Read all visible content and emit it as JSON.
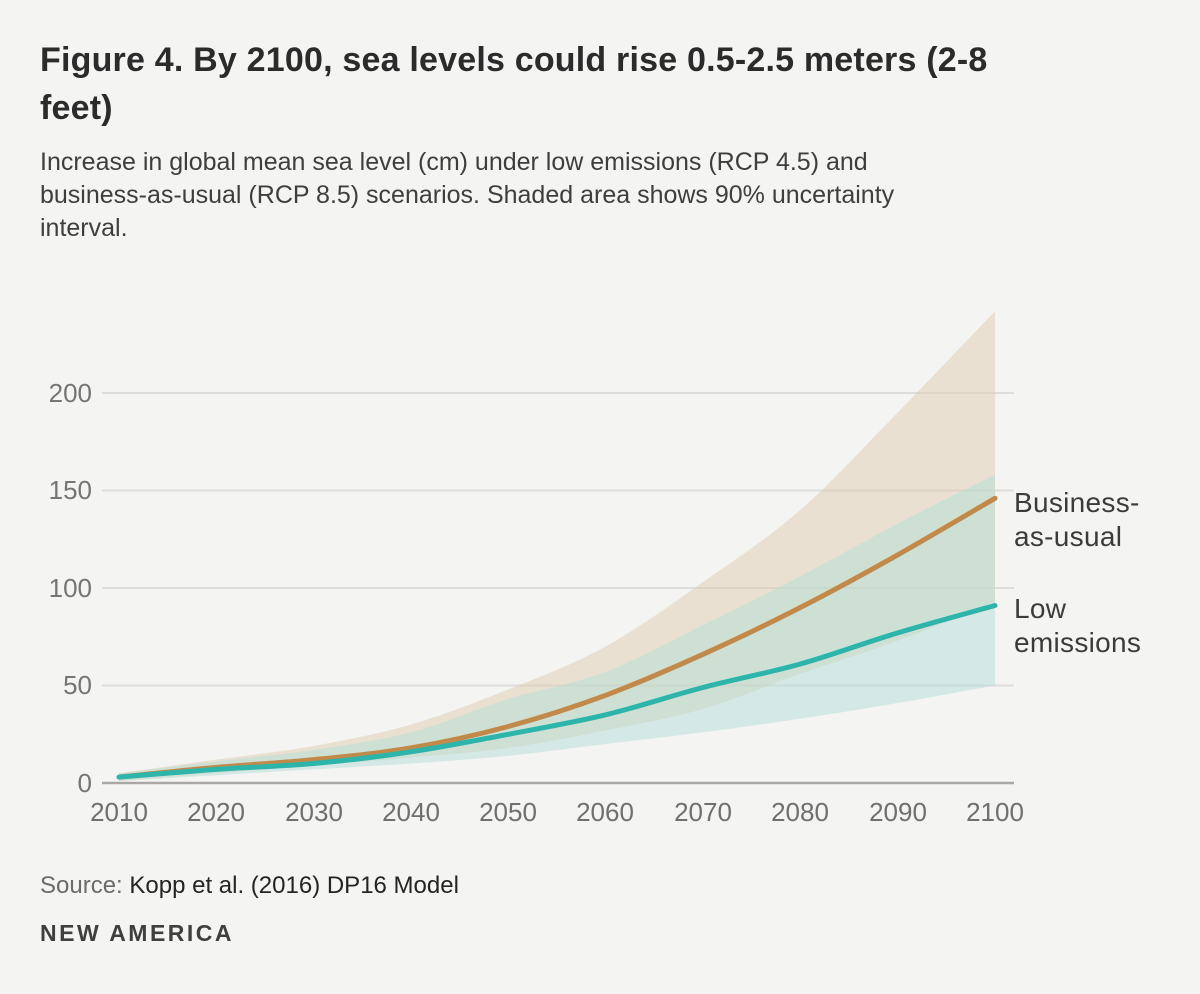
{
  "page": {
    "title_lines": [
      "Figure 4. By 2100, sea levels could rise 0.5-2.5 meters (2-8",
      "feet)"
    ],
    "subtitle_lines": [
      "Increase in global mean sea level (cm) under low emissions (RCP 4.5) and",
      "business-as-usual (RCP 8.5) scenarios. Shaded area shows 90% uncertainty",
      "interval."
    ],
    "source_label": "Source:",
    "source_text": "Kopp et al. (2016) DP16 Model",
    "brand": "NEW AMERICA"
  },
  "colors": {
    "background": "#f4f4f2",
    "gridline": "#dedddb",
    "axis_line": "#a9a8a6",
    "bau_line": "#c28a4a",
    "bau_band": "#decbb0",
    "low_line": "#2db4ab",
    "low_band": "#b3ded8"
  },
  "chart_data": {
    "type": "area",
    "title": "Figure 4. By 2100, sea levels could rise 0.5-2.5 meters (2-8 feet)",
    "subtitle": "Increase in global mean sea level (cm) under low emissions (RCP 4.5) and business-as-usual (RCP 8.5) scenarios. Shaded area shows 90% uncertainty interval.",
    "ylabel": "Increase in global mean sea level (cm)",
    "band_meaning": "90% uncertainty interval",
    "grid": true,
    "legend_position": "right-annotations",
    "xlim": [
      2010,
      2100
    ],
    "ylim": [
      0,
      250
    ],
    "x": [
      2010,
      2020,
      2030,
      2040,
      2050,
      2060,
      2070,
      2080,
      2090,
      2100
    ],
    "x_ticks": [
      "2010",
      "2020",
      "2030",
      "2040",
      "2050",
      "2060",
      "2070",
      "2080",
      "2090",
      "2100"
    ],
    "y_ticks": [
      "0",
      "50",
      "100",
      "150",
      "200"
    ],
    "y_tick_values": [
      0,
      50,
      100,
      150,
      200
    ],
    "series": [
      {
        "name": "Business-as-usual",
        "scenario": "RCP 8.5",
        "color": "#c28a4a",
        "band_color": "#decbb0",
        "values": [
          3,
          8,
          12,
          18,
          29,
          45,
          66,
          90,
          117,
          146
        ],
        "low": [
          1,
          5,
          9,
          13,
          18,
          27,
          38,
          56,
          73,
          93
        ],
        "high": [
          5,
          12,
          19,
          30,
          48,
          70,
          103,
          140,
          190,
          242
        ]
      },
      {
        "name": "Low emissions",
        "scenario": "RCP 4.5",
        "color": "#2db4ab",
        "band_color": "#b3ded8",
        "values": [
          3,
          7,
          10,
          16,
          25,
          35,
          49,
          61,
          77,
          91
        ],
        "low": [
          1,
          4,
          7,
          10,
          14,
          20,
          26,
          33,
          41,
          50
        ],
        "high": [
          5,
          11,
          17,
          26,
          43,
          57,
          81,
          106,
          133,
          158
        ]
      }
    ]
  }
}
